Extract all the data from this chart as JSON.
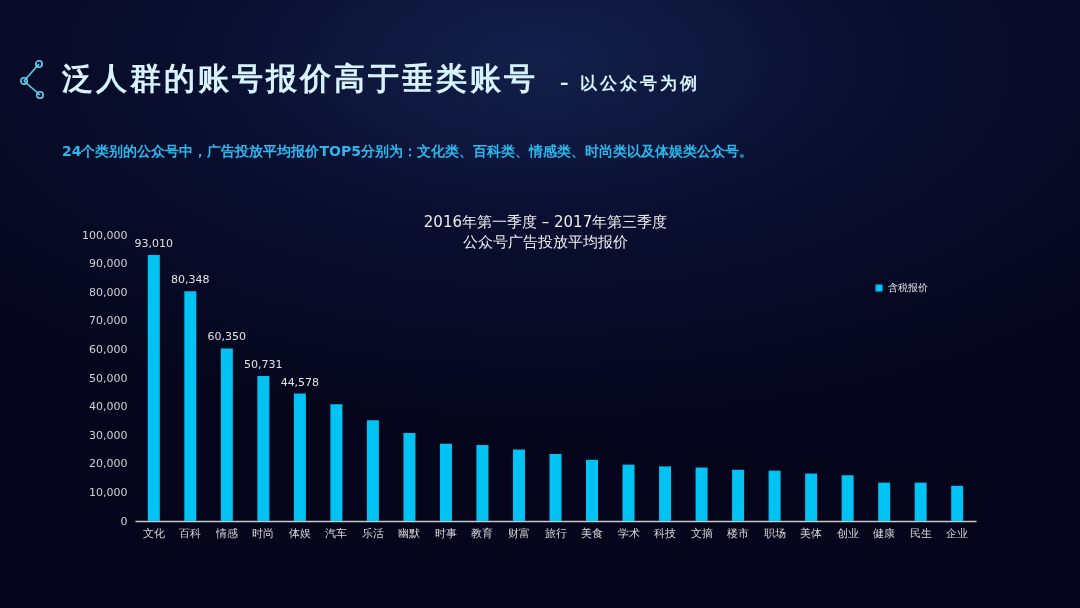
{
  "chart_data": {
    "type": "bar",
    "title": "泛人群的账号报价高于垂类账号",
    "subtitle": "– 以公众号为例",
    "annotations": [
      "24个类别的公众号中，广告投放平均报价TOP5分别为：文化类、百科类、情感类、时尚类以及体娱类公众号。",
      "2016年第一季度 – 2017年第三季度",
      "公众号广告投放平均报价"
    ],
    "categories": [
      "文化",
      "百科",
      "情感",
      "时尚",
      "体娱",
      "汽车",
      "乐活",
      "幽默",
      "时事",
      "教育",
      "财富",
      "旅行",
      "美食",
      "学术",
      "科技",
      "文摘",
      "楼市",
      "职场",
      "美体",
      "创业",
      "健康",
      "民生",
      "企业"
    ],
    "series": [
      {
        "name": "含税报价",
        "color": "#00c2f3",
        "values": [
          93010,
          80348,
          60350,
          50731,
          44578,
          40800,
          35200,
          30800,
          27000,
          26600,
          25000,
          23400,
          21400,
          19700,
          19100,
          18700,
          17900,
          17600,
          16600,
          16000,
          13400,
          13400,
          12300
        ],
        "value_labels": [
          "93,010",
          "80,348",
          "60,350",
          "50,731",
          "44,578",
          null,
          null,
          null,
          null,
          null,
          null,
          null,
          null,
          null,
          null,
          null,
          null,
          null,
          null,
          null,
          null,
          null,
          null
        ]
      }
    ],
    "ylim": [
      0,
      100000
    ],
    "yticks": [
      0,
      {
        "value": 10000,
        "label": "10,000"
      },
      {
        "value": 20000,
        "label": "20,000"
      },
      {
        "value": 30000,
        "label": "30,000"
      },
      {
        "value": 40000,
        "label": "40,000"
      },
      {
        "value": 50000,
        "label": "50,000"
      },
      {
        "value": 60000,
        "label": "60,000"
      },
      {
        "value": 70000,
        "label": "70,000"
      },
      {
        "value": 80000,
        "label": "80,000"
      },
      {
        "value": 90000,
        "label": "90,000"
      },
      {
        "value": 100000,
        "label": "100,000"
      }
    ],
    "legend": "top right"
  }
}
